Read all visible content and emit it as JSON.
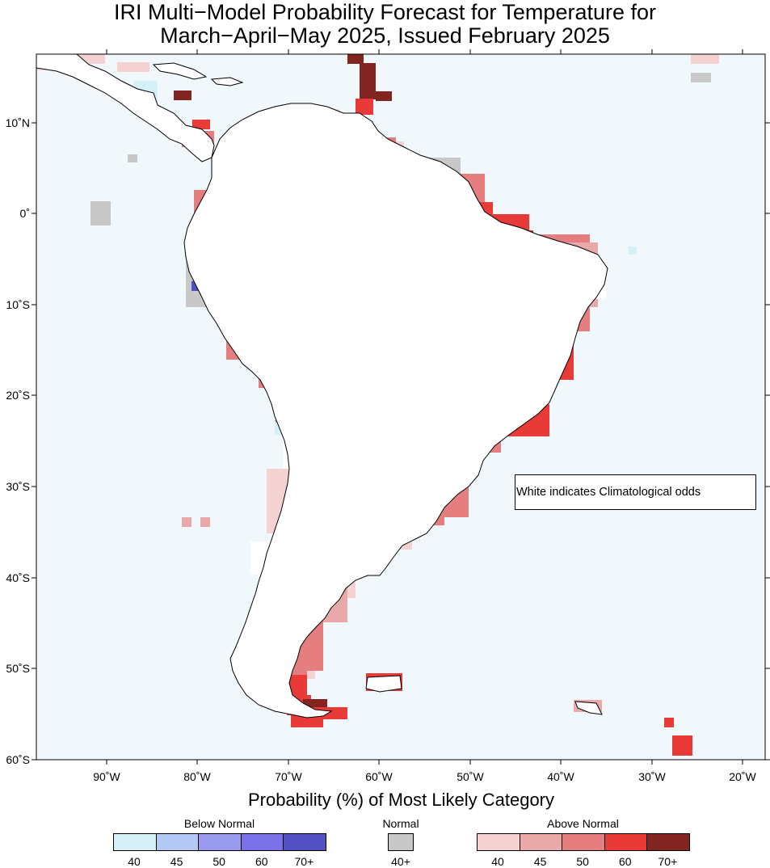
{
  "title_line1": "IRI Multi−Model Probability Forecast for Temperature for",
  "title_line2": "March−April−May 2025, Issued February 2025",
  "note": "White indicates Climatological odds",
  "lat_labels": [
    "10˚N",
    "0˚",
    "10˚S",
    "20˚S",
    "30˚S",
    "40˚S",
    "50˚S",
    "60˚S"
  ],
  "lon_labels": [
    "90˚W",
    "80˚W",
    "70˚W",
    "60˚W",
    "50˚W",
    "40˚W",
    "30˚W",
    "20˚W"
  ],
  "legend": {
    "title": "Probability (%) of Most Likely Category",
    "below_label": "Below Normal",
    "normal_label": "Normal",
    "above_label": "Above Normal",
    "below_ticks": [
      "40",
      "45",
      "50",
      "60",
      "70+"
    ],
    "normal_tick": "40+",
    "above_ticks": [
      "40",
      "45",
      "50",
      "60",
      "70+"
    ],
    "below_colors": [
      "#d6f0f7",
      "#b4c9f3",
      "#9a9bee",
      "#7a70e8",
      "#5350c4"
    ],
    "normal_color": "#c8c8c8",
    "above_colors": [
      "#f5d2d2",
      "#e9a9a9",
      "#e57e7e",
      "#e83a36",
      "#822420"
    ]
  },
  "colors": {
    "ocean": "#f0f8fc",
    "land_white": "#ffffff",
    "frame": "#000000"
  }
}
